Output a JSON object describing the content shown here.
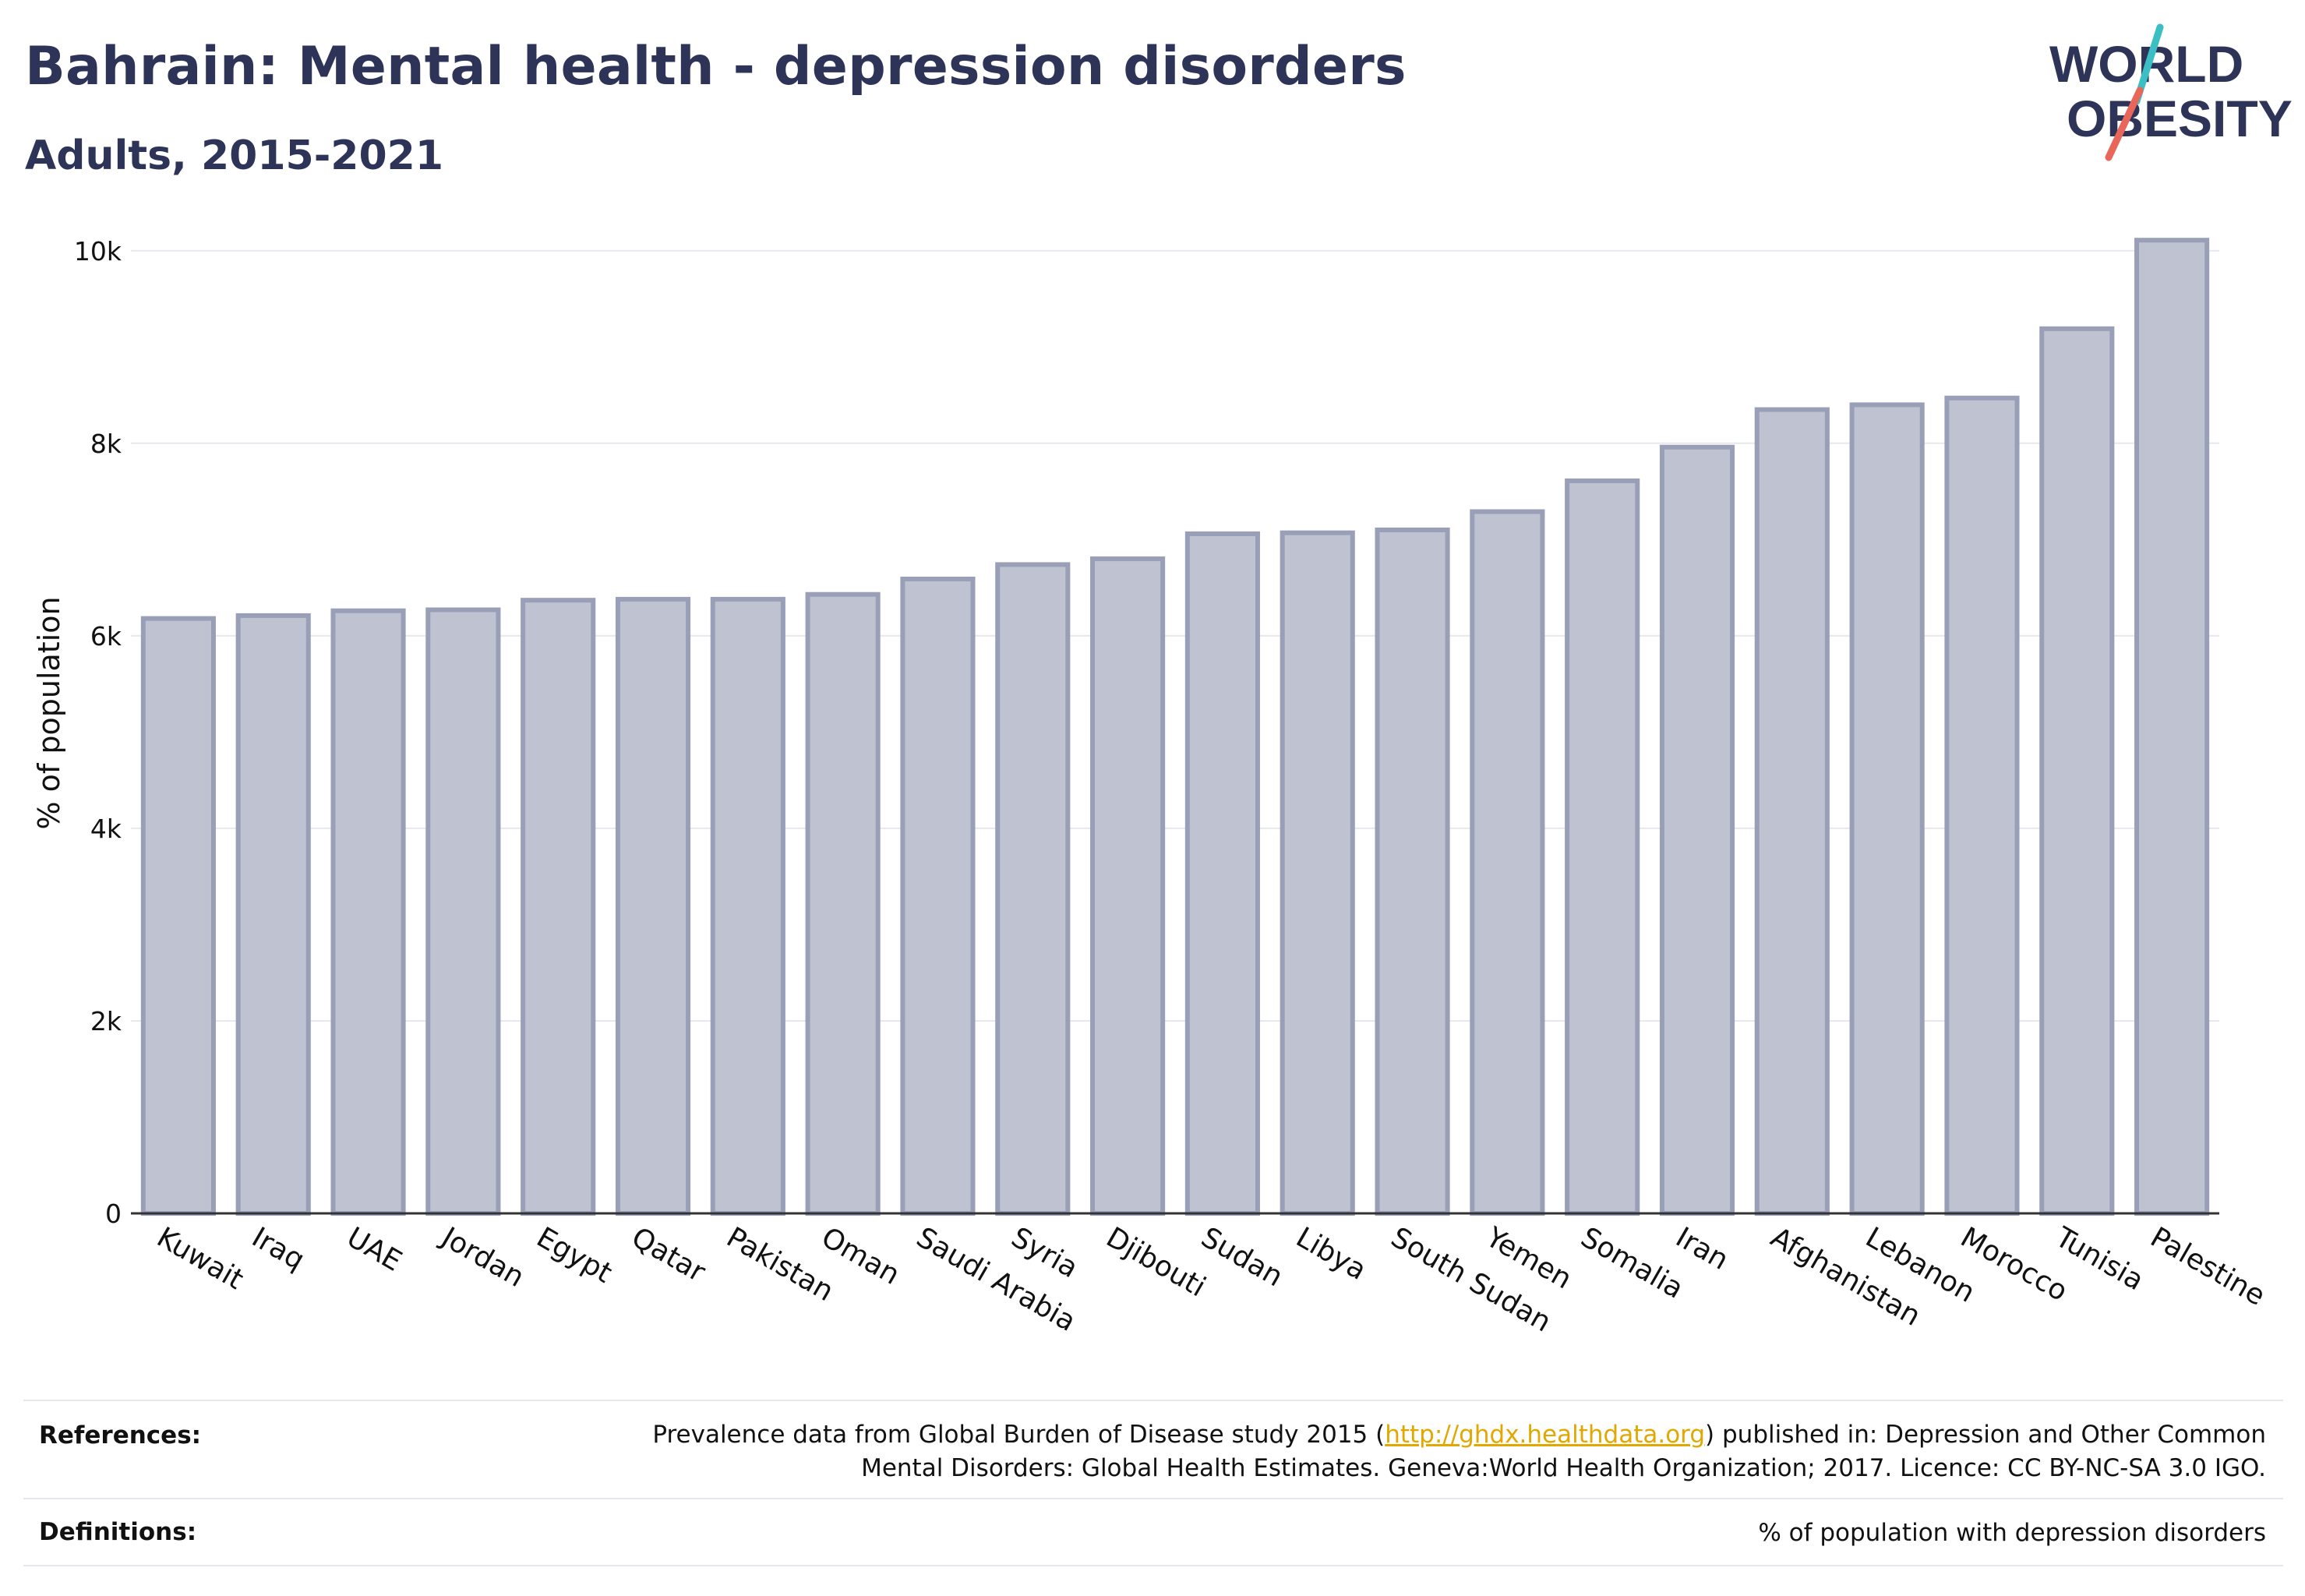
{
  "header": {
    "title": "Bahrain: Mental health - depression disorders",
    "subtitle": "Adults, 2015-2021"
  },
  "logo": {
    "line1": "WORLD",
    "line2": "OBESITY",
    "accent_teal": "#3bbfc4",
    "accent_red": "#e8665a",
    "text_color": "#2e3458"
  },
  "colors": {
    "bar_fill": "#bfc2d1",
    "bar_stroke": "#9a9fb8",
    "title": "#2e3458",
    "link": "#e0a800"
  },
  "chart_data": {
    "type": "bar",
    "ylabel": "% of population",
    "xlabel": "",
    "ylim": [
      0,
      10500
    ],
    "yticks": [
      0,
      2000,
      4000,
      6000,
      8000,
      10000
    ],
    "ytick_labels": [
      "0",
      "2k",
      "4k",
      "6k",
      "8k",
      "10k"
    ],
    "grid": true,
    "categories": [
      "Kuwait",
      "Iraq",
      "UAE",
      "Jordan",
      "Egypt",
      "Qatar",
      "Pakistan",
      "Oman",
      "Saudi Arabia",
      "Syria",
      "Djibouti",
      "Sudan",
      "Libya",
      "South Sudan",
      "Yemen",
      "Somalia",
      "Iran",
      "Afghanistan",
      "Lebanon",
      "Morocco",
      "Tunisia",
      "Palestine"
    ],
    "values": [
      6180,
      6210,
      6260,
      6270,
      6370,
      6380,
      6380,
      6430,
      6590,
      6740,
      6800,
      7060,
      7070,
      7100,
      7290,
      7610,
      7960,
      8350,
      8400,
      8470,
      9190,
      10110
    ]
  },
  "footer": {
    "references_label": "References:",
    "references_text_before": "Prevalence data from Global Burden of Disease study 2015 (",
    "references_link": "http://ghdx.healthdata.org",
    "references_text_after": ") published in: Depression and Other Common",
    "references_text_line2": "Mental Disorders: Global Health Estimates. Geneva:World Health Organization; 2017. Licence: CC BY-NC-SA 3.0 IGO.",
    "definitions_label": "Definitions:",
    "definitions_text": "% of population with depression disorders"
  }
}
